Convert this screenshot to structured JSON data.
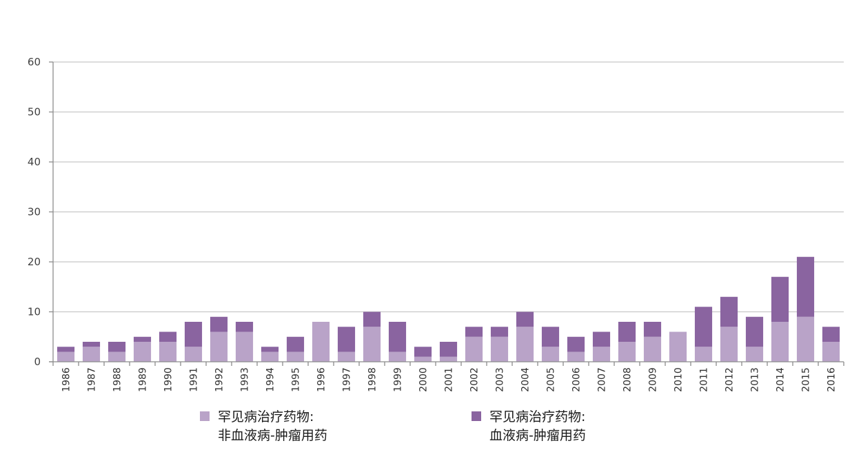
{
  "chart_data": {
    "type": "bar",
    "stacked": true,
    "categories": [
      "1986",
      "1987",
      "1988",
      "1989",
      "1990",
      "1991",
      "1992",
      "1993",
      "1994",
      "1995",
      "1996",
      "1997",
      "1998",
      "1999",
      "2000",
      "2001",
      "2002",
      "2003",
      "2004",
      "2005",
      "2006",
      "2007",
      "2008",
      "2009",
      "2010",
      "2011",
      "2012",
      "2013",
      "2014",
      "2015",
      "2016"
    ],
    "series": [
      {
        "name_lines": [
          "罕见病治疗药物:",
          "非血液病-肿瘤用药"
        ],
        "color": "#b9a3c8",
        "values": [
          2,
          3,
          2,
          4,
          4,
          3,
          6,
          6,
          2,
          2,
          8,
          2,
          7,
          2,
          1,
          1,
          5,
          5,
          7,
          3,
          2,
          3,
          4,
          5,
          6,
          3,
          7,
          3,
          8,
          9,
          4
        ]
      },
      {
        "name_lines": [
          "罕见病治疗药物:",
          "血液病-肿瘤用药"
        ],
        "color": "#8a64a0",
        "values": [
          1,
          1,
          2,
          1,
          2,
          5,
          3,
          2,
          1,
          3,
          0,
          5,
          3,
          6,
          2,
          3,
          2,
          2,
          3,
          4,
          3,
          3,
          4,
          3,
          0,
          8,
          6,
          6,
          9,
          12,
          3
        ]
      }
    ],
    "y_ticks": [
      "0",
      "10",
      "20",
      "30",
      "40",
      "50",
      "60"
    ],
    "ylim": [
      0,
      60
    ],
    "grid": true,
    "legend_position": "bottom"
  }
}
